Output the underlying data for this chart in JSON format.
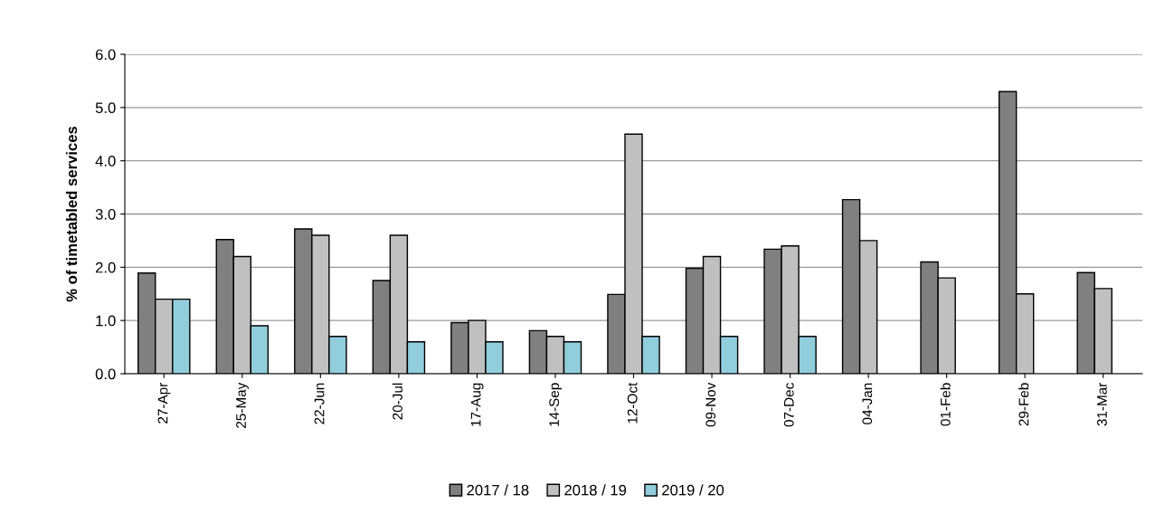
{
  "chart_data": {
    "type": "bar",
    "ylabel": "% of timetabled services",
    "categories": [
      "27-Apr",
      "25-May",
      "22-Jun",
      "20-Jul",
      "17-Aug",
      "14-Sep",
      "12-Oct",
      "09-Nov",
      "07-Dec",
      "04-Jan",
      "01-Feb",
      "29-Feb",
      "31-Mar"
    ],
    "series": [
      {
        "name": "2017 / 18",
        "color": "#808080",
        "values": [
          1.89,
          2.52,
          2.72,
          1.75,
          0.96,
          0.81,
          1.49,
          1.98,
          2.34,
          3.27,
          2.1,
          5.3,
          1.9
        ]
      },
      {
        "name": "2018 / 19",
        "color": "#c0c0c0",
        "values": [
          1.4,
          2.2,
          2.6,
          2.6,
          1.0,
          0.7,
          4.5,
          2.2,
          2.4,
          2.5,
          1.8,
          1.5,
          1.6
        ]
      },
      {
        "name": "2019 / 20",
        "color": "#92cddc",
        "values": [
          1.4,
          0.9,
          0.7,
          0.6,
          0.6,
          0.6,
          0.7,
          0.7,
          0.7,
          null,
          null,
          null,
          null
        ]
      }
    ],
    "ylim": [
      0,
      6
    ],
    "yticks": [
      {
        "value": 0,
        "label": "0.0"
      },
      {
        "value": 1,
        "label": "1.0"
      },
      {
        "value": 2,
        "label": "2.0"
      },
      {
        "value": 3,
        "label": "3.0"
      },
      {
        "value": 4,
        "label": "4.0"
      },
      {
        "value": 5,
        "label": "5.0"
      },
      {
        "value": 6,
        "label": "6.0"
      }
    ],
    "grid": "y",
    "legend": "bottom"
  }
}
